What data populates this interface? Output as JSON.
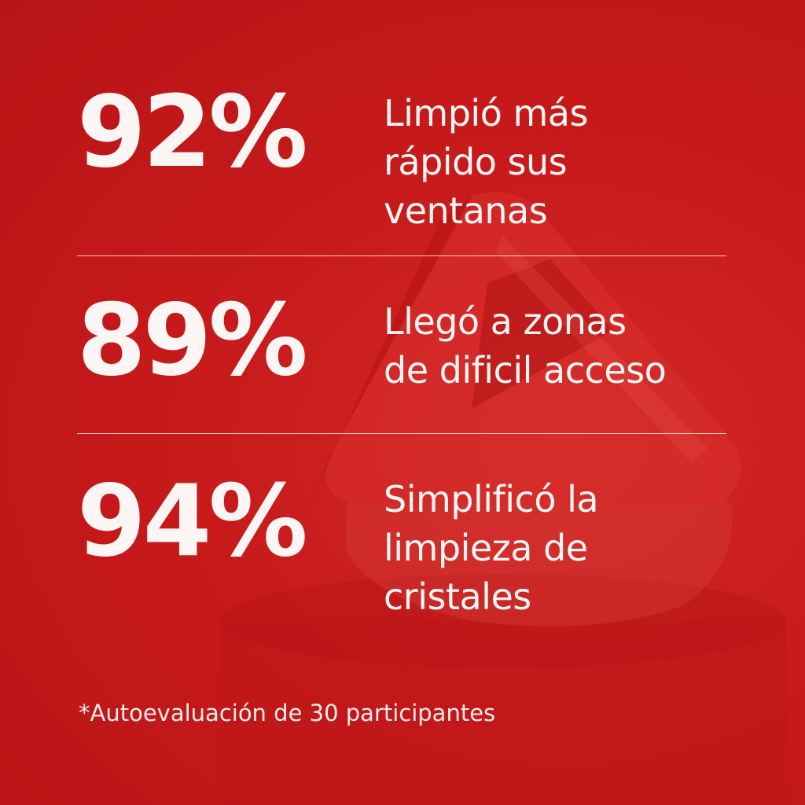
{
  "stats": [
    {
      "value": "92%",
      "label": "Limpió más\nrápido sus\nventanas"
    },
    {
      "value": "89%",
      "label": "Llegó a zonas\nde dificil acceso"
    },
    {
      "value": "94%",
      "label": "Simplificó la\nlimpieza de\ncristales"
    }
  ],
  "footnote": "*Autoevaluación de 30 participantes",
  "colors": {
    "background": "#c8191b",
    "text": "#fbf6f3"
  }
}
